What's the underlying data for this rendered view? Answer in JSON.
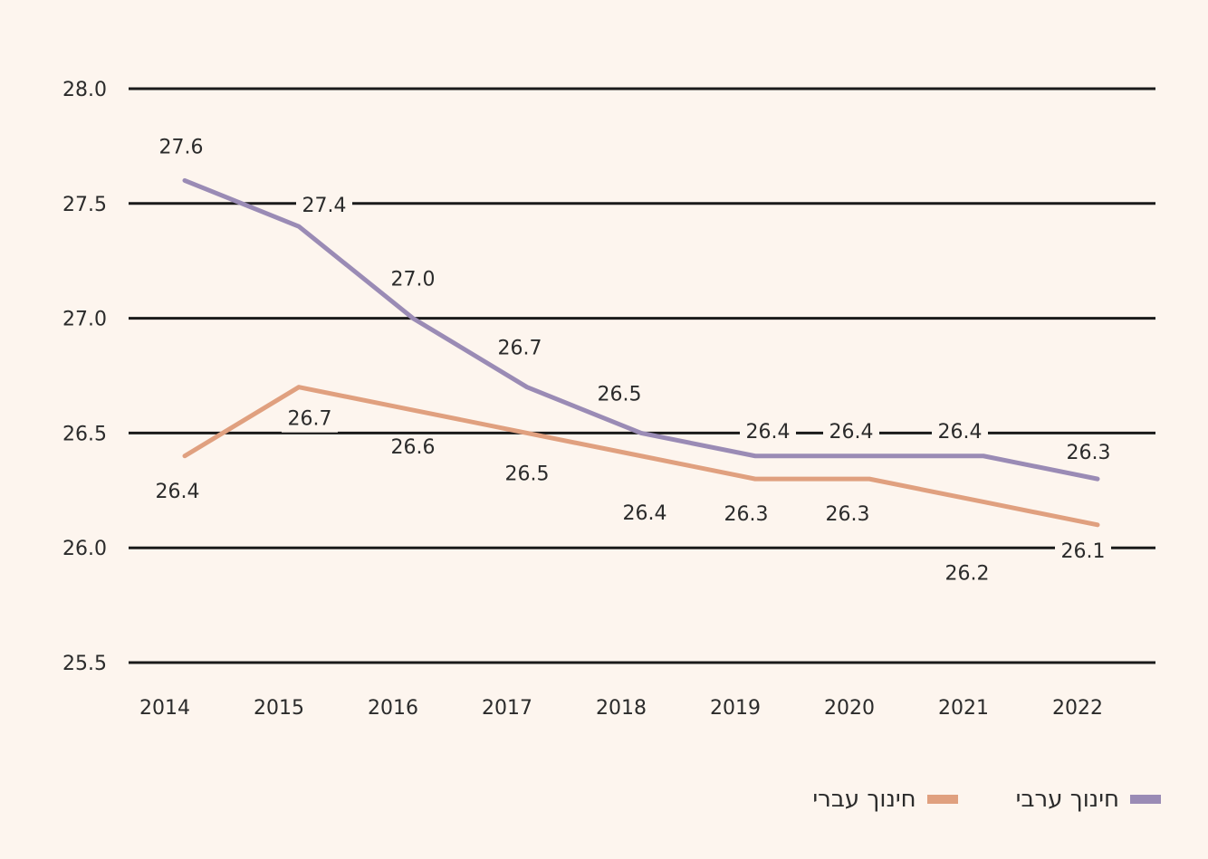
{
  "chart_data": {
    "type": "line",
    "x": [
      "2014",
      "2015",
      "2016",
      "2017",
      "2018",
      "2019",
      "2020",
      "2021",
      "2022"
    ],
    "ylim": [
      25.5,
      28.0
    ],
    "yticks": [
      "25.5",
      "26.0",
      "26.5",
      "27.0",
      "27.5",
      "28.0"
    ],
    "grid": true,
    "legend_position": "bottom-right",
    "series": [
      {
        "name": "חינוך ערבי",
        "color": "#9a8bb5",
        "values": [
          27.6,
          27.4,
          27.0,
          26.7,
          26.5,
          26.4,
          26.4,
          26.4,
          26.3
        ],
        "labels": [
          "27.6",
          "27.4",
          "27.0",
          "26.7",
          "26.5",
          "26.4",
          "26.4",
          "26.4",
          "26.3"
        ]
      },
      {
        "name": "חינוך עברי",
        "color": "#e0a07f",
        "values": [
          26.4,
          26.7,
          26.6,
          26.5,
          26.4,
          26.3,
          26.3,
          26.2,
          26.1
        ],
        "labels": [
          "26.4",
          "26.7",
          "26.6",
          "26.5",
          "26.4",
          "26.3",
          "26.3",
          "26.2",
          "26.1"
        ]
      }
    ]
  },
  "legend": {
    "arab_label": "חינוך ערבי",
    "hebrew_label": "חינוך עברי"
  }
}
